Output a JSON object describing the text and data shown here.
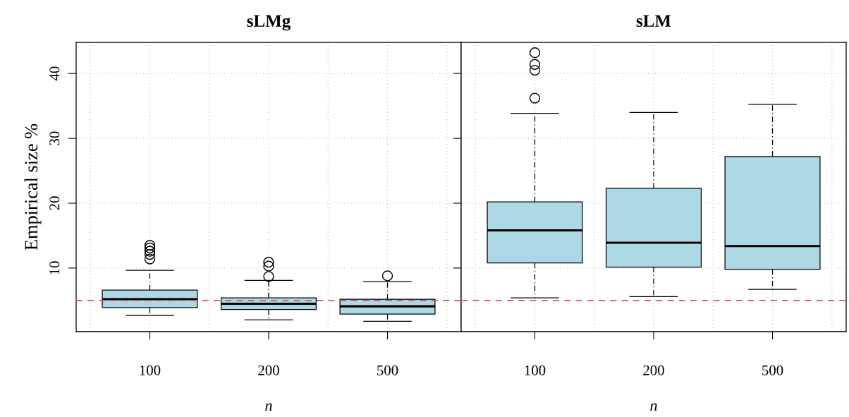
{
  "chart_data": [
    {
      "type": "box",
      "title": "sLMg",
      "xlabel": "n",
      "ylabel": "Empirical size %",
      "categories": [
        "100",
        "200",
        "500"
      ],
      "series": [
        {
          "color": "#add8e6",
          "boxes": [
            {
              "low": 2.7,
              "q1": 3.9,
              "median": 5.2,
              "q3": 6.6,
              "high": 9.65,
              "outliers": [
                13.5,
                13.1,
                12.6,
                12.1,
                11.4
              ]
            },
            {
              "low": 2.0,
              "q1": 3.6,
              "median": 4.5,
              "q3": 5.4,
              "high": 8.1,
              "outliers": [
                8.7,
                10.3,
                10.9
              ]
            },
            {
              "low": 1.8,
              "q1": 2.9,
              "median": 4.1,
              "q3": 5.2,
              "high": 7.9,
              "outliers": [
                8.8
              ]
            }
          ]
        }
      ],
      "ylim": [
        0.2,
        44.8
      ],
      "yticks": [
        10,
        20,
        30,
        40
      ],
      "grid": true,
      "ref_lines": [
        {
          "axis": "y",
          "value": 5,
          "color": "#df536b",
          "line_style": "dashed"
        }
      ]
    },
    {
      "type": "box",
      "title": "sLM",
      "xlabel": "n",
      "categories": [
        "100",
        "200",
        "500"
      ],
      "series": [
        {
          "color": "#add8e6",
          "boxes": [
            {
              "low": 5.4,
              "q1": 10.8,
              "median": 15.8,
              "q3": 20.2,
              "high": 33.85,
              "outliers": [
                36.2,
                40.5,
                41.4,
                43.2
              ]
            },
            {
              "low": 5.6,
              "q1": 10.15,
              "median": 13.9,
              "q3": 22.3,
              "high": 34.0
            },
            {
              "low": 6.7,
              "q1": 9.8,
              "median": 13.4,
              "q3": 27.2,
              "high": 35.25
            }
          ]
        }
      ],
      "ylim": [
        0.2,
        44.8
      ],
      "yticks": [
        10,
        20,
        30,
        40
      ],
      "grid": true,
      "tick_labels": "x",
      "ref_lines": [
        {
          "axis": "y",
          "value": 5,
          "color": "#df536b",
          "line_style": "dashed"
        }
      ]
    }
  ]
}
